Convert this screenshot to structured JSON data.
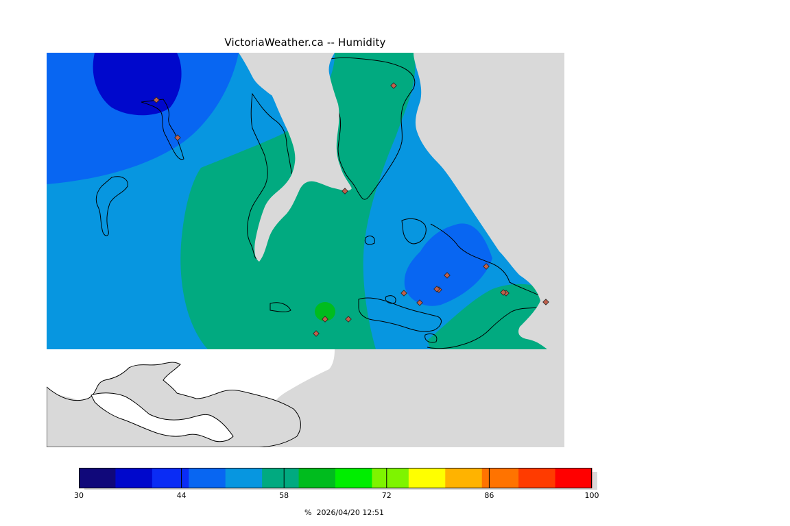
{
  "title": "VictoriaWeather.ca -- Humidity",
  "colors": {
    "land_gray": "#d9d9d9",
    "water_white": "#ffffff",
    "coast": "#000000",
    "station": "#c0604c"
  },
  "colorbar": {
    "min": 30,
    "max": 100,
    "tick_labels": [
      "30",
      "44",
      "58",
      "72",
      "86",
      "100"
    ],
    "ticks": [
      30,
      44,
      58,
      72,
      86,
      100
    ],
    "bins": [
      {
        "from": 30,
        "to": 35,
        "color": "#10087a"
      },
      {
        "from": 35,
        "to": 40,
        "color": "#0008cc"
      },
      {
        "from": 40,
        "to": 45,
        "color": "#0a2cf5"
      },
      {
        "from": 45,
        "to": 50,
        "color": "#0866f2"
      },
      {
        "from": 50,
        "to": 55,
        "color": "#0796e0"
      },
      {
        "from": 55,
        "to": 60,
        "color": "#01aa80"
      },
      {
        "from": 60,
        "to": 65,
        "color": "#00bc1e"
      },
      {
        "from": 65,
        "to": 70,
        "color": "#00ee00"
      },
      {
        "from": 70,
        "to": 75,
        "color": "#7ef400"
      },
      {
        "from": 75,
        "to": 80,
        "color": "#ffff00"
      },
      {
        "from": 80,
        "to": 85,
        "color": "#ffb300"
      },
      {
        "from": 85,
        "to": 90,
        "color": "#ff7300"
      },
      {
        "from": 90,
        "to": 95,
        "color": "#ff3b00"
      },
      {
        "from": 95,
        "to": 100,
        "color": "#ff0000"
      }
    ],
    "unit": "%",
    "timestamp": "2026/04/20 12:51"
  },
  "stations_count": 16
}
